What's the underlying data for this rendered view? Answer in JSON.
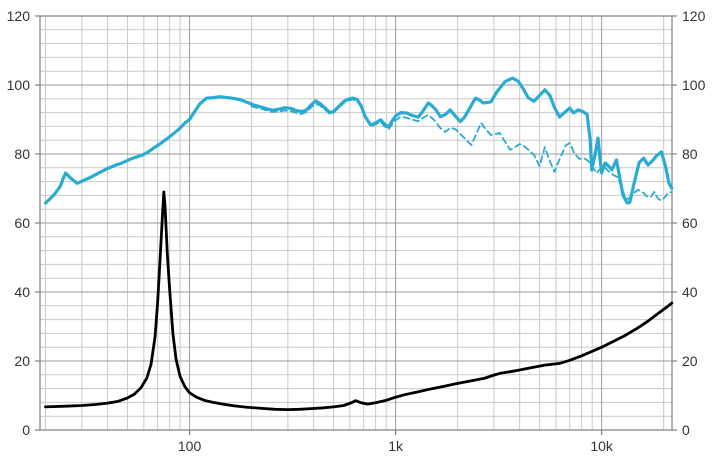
{
  "chart_data": {
    "type": "line",
    "title": "",
    "description": "Loudspeaker SPL frequency response (on-axis solid, off-axis dashed) and impedance curve",
    "grid": {
      "major_color": "#9a9a9a",
      "minor_color": "#c9c9c9",
      "border_color": "#7f7f7f",
      "text_color": "#333333",
      "background": "#ffffff",
      "grid_on": true
    },
    "x_axis": {
      "scale": "log",
      "min": 18.8,
      "max": 21950,
      "tick_labels": [
        {
          "value": 100,
          "label": "100"
        },
        {
          "value": 1000,
          "label": "1k"
        },
        {
          "value": 10000,
          "label": "10k"
        }
      ]
    },
    "y_axis_left": {
      "min": 0,
      "max": 120,
      "major_step": 20,
      "minor_step": 4,
      "tick_labels": [
        "0",
        "20",
        "40",
        "60",
        "80",
        "100",
        "120"
      ]
    },
    "y_axis_right": {
      "min": 0,
      "max": 120,
      "major_step": 20,
      "minor_step": 4,
      "tick_labels": [
        "0",
        "20",
        "40",
        "60",
        "80",
        "100",
        "120"
      ]
    },
    "legend": {
      "visible": false
    },
    "series": [
      {
        "name": "spl-on-axis",
        "style": "solid",
        "color": "#29ABD3",
        "width": 3.2,
        "points": [
          [
            20,
            65.8
          ],
          [
            21,
            67.0
          ],
          [
            22,
            68.2
          ],
          [
            23.5,
            70.5
          ],
          [
            25,
            74.5
          ],
          [
            26.5,
            73.0
          ],
          [
            28.5,
            71.5
          ],
          [
            31,
            72.5
          ],
          [
            33,
            73.2
          ],
          [
            36,
            74.4
          ],
          [
            40,
            75.8
          ],
          [
            44,
            76.8
          ],
          [
            47,
            77.4
          ],
          [
            52,
            78.6
          ],
          [
            59,
            79.7
          ],
          [
            63,
            80.6
          ],
          [
            68,
            82.0
          ],
          [
            73,
            83.2
          ],
          [
            78,
            84.5
          ],
          [
            84,
            86.0
          ],
          [
            90,
            87.5
          ],
          [
            95,
            89.0
          ],
          [
            100,
            90.0
          ],
          [
            105,
            92.0
          ],
          [
            112,
            94.5
          ],
          [
            121,
            96.2
          ],
          [
            130,
            96.3
          ],
          [
            140,
            96.6
          ],
          [
            150,
            96.4
          ],
          [
            160,
            96.2
          ],
          [
            175,
            95.8
          ],
          [
            190,
            95.0
          ],
          [
            205,
            94.2
          ],
          [
            223,
            93.6
          ],
          [
            240,
            93.0
          ],
          [
            255,
            92.7
          ],
          [
            270,
            93.0
          ],
          [
            290,
            93.4
          ],
          [
            310,
            93.2
          ],
          [
            330,
            92.6
          ],
          [
            350,
            92.3
          ],
          [
            370,
            92.8
          ],
          [
            390,
            94.3
          ],
          [
            410,
            95.4
          ],
          [
            430,
            94.6
          ],
          [
            455,
            93.3
          ],
          [
            480,
            92.0
          ],
          [
            500,
            92.3
          ],
          [
            530,
            93.8
          ],
          [
            560,
            95.2
          ],
          [
            590,
            95.9
          ],
          [
            620,
            96.2
          ],
          [
            650,
            95.8
          ],
          [
            680,
            94.0
          ],
          [
            710,
            91.0
          ],
          [
            757,
            88.4
          ],
          [
            800,
            89.0
          ],
          [
            846,
            89.9
          ],
          [
            885,
            88.6
          ],
          [
            925,
            87.8
          ],
          [
            960,
            89.5
          ],
          [
            1000,
            91.0
          ],
          [
            1060,
            92.0
          ],
          [
            1130,
            91.9
          ],
          [
            1200,
            91.2
          ],
          [
            1290,
            90.7
          ],
          [
            1360,
            92.5
          ],
          [
            1440,
            94.8
          ],
          [
            1500,
            94.0
          ],
          [
            1570,
            92.8
          ],
          [
            1650,
            90.8
          ],
          [
            1750,
            91.5
          ],
          [
            1840,
            92.8
          ],
          [
            1950,
            91.0
          ],
          [
            2060,
            89.4
          ],
          [
            2150,
            90.5
          ],
          [
            2300,
            93.5
          ],
          [
            2440,
            96.2
          ],
          [
            2560,
            95.6
          ],
          [
            2660,
            94.8
          ],
          [
            2900,
            95.1
          ],
          [
            3100,
            98.0
          ],
          [
            3400,
            101.0
          ],
          [
            3700,
            102.0
          ],
          [
            3950,
            101.0
          ],
          [
            4200,
            98.5
          ],
          [
            4400,
            96.3
          ],
          [
            4700,
            95.3
          ],
          [
            5000,
            97.0
          ],
          [
            5300,
            98.6
          ],
          [
            5600,
            97.0
          ],
          [
            5900,
            93.5
          ],
          [
            6250,
            90.7
          ],
          [
            6600,
            92.0
          ],
          [
            7000,
            93.3
          ],
          [
            7300,
            91.9
          ],
          [
            7700,
            92.8
          ],
          [
            8100,
            92.3
          ],
          [
            8500,
            91.5
          ],
          [
            8800,
            84.0
          ],
          [
            8950,
            75.4
          ],
          [
            9300,
            80.0
          ],
          [
            9600,
            84.6
          ],
          [
            9800,
            79.0
          ],
          [
            10000,
            74.5
          ],
          [
            10400,
            77.4
          ],
          [
            10800,
            76.5
          ],
          [
            11200,
            75.4
          ],
          [
            11800,
            78.3
          ],
          [
            12300,
            72.5
          ],
          [
            12700,
            68.0
          ],
          [
            13300,
            65.8
          ],
          [
            13700,
            66.0
          ],
          [
            14300,
            71.0
          ],
          [
            15200,
            77.5
          ],
          [
            16000,
            78.8
          ],
          [
            16800,
            76.8
          ],
          [
            17600,
            78.0
          ],
          [
            18500,
            79.5
          ],
          [
            19500,
            80.6
          ],
          [
            20500,
            76.0
          ],
          [
            21200,
            71.6
          ],
          [
            21900,
            70.1
          ]
        ]
      },
      {
        "name": "spl-off-axis",
        "style": "dashed",
        "color": "#29ABD3",
        "width": 1.8,
        "dash": "6 4",
        "points": [
          [
            200,
            93.8
          ],
          [
            223,
            93.1
          ],
          [
            250,
            92.2
          ],
          [
            270,
            92.3
          ],
          [
            290,
            92.6
          ],
          [
            310,
            92.4
          ],
          [
            330,
            91.9
          ],
          [
            350,
            91.6
          ],
          [
            370,
            92.2
          ],
          [
            390,
            93.6
          ],
          [
            410,
            94.6
          ],
          [
            430,
            94.0
          ],
          [
            455,
            92.8
          ],
          [
            480,
            91.6
          ],
          [
            500,
            92.0
          ],
          [
            530,
            93.4
          ],
          [
            560,
            94.8
          ],
          [
            590,
            95.5
          ],
          [
            620,
            95.8
          ],
          [
            650,
            95.3
          ],
          [
            680,
            93.6
          ],
          [
            710,
            90.6
          ],
          [
            757,
            88.0
          ],
          [
            800,
            88.6
          ],
          [
            846,
            89.3
          ],
          [
            885,
            88.0
          ],
          [
            925,
            87.2
          ],
          [
            960,
            88.6
          ],
          [
            1000,
            89.8
          ],
          [
            1060,
            90.8
          ],
          [
            1130,
            90.5
          ],
          [
            1200,
            90.0
          ],
          [
            1290,
            89.5
          ],
          [
            1360,
            90.5
          ],
          [
            1440,
            91.3
          ],
          [
            1530,
            90.0
          ],
          [
            1650,
            87.5
          ],
          [
            1740,
            86.4
          ],
          [
            1850,
            87.6
          ],
          [
            1950,
            87.2
          ],
          [
            2060,
            85.8
          ],
          [
            2200,
            84.1
          ],
          [
            2330,
            82.6
          ],
          [
            2450,
            85.5
          ],
          [
            2600,
            89.0
          ],
          [
            2750,
            87.0
          ],
          [
            2900,
            85.5
          ],
          [
            3050,
            85.8
          ],
          [
            3200,
            86.1
          ],
          [
            3400,
            83.5
          ],
          [
            3600,
            81.2
          ],
          [
            3800,
            82.0
          ],
          [
            4000,
            82.9
          ],
          [
            4200,
            82.3
          ],
          [
            4450,
            81.0
          ],
          [
            4700,
            79.7
          ],
          [
            5000,
            76.5
          ],
          [
            5300,
            82.0
          ],
          [
            5600,
            78.0
          ],
          [
            5900,
            74.8
          ],
          [
            6300,
            79.0
          ],
          [
            6700,
            82.5
          ],
          [
            7000,
            83.2
          ],
          [
            7400,
            80.0
          ],
          [
            7800,
            78.6
          ],
          [
            8200,
            78.8
          ],
          [
            8600,
            78.0
          ],
          [
            9000,
            76.5
          ],
          [
            9400,
            74.5
          ],
          [
            9800,
            75.5
          ],
          [
            10300,
            76.3
          ],
          [
            10800,
            75.0
          ],
          [
            11300,
            74.0
          ],
          [
            11900,
            73.4
          ],
          [
            12400,
            71.0
          ],
          [
            13000,
            67.5
          ],
          [
            13500,
            67.0
          ],
          [
            14200,
            68.5
          ],
          [
            15000,
            69.6
          ],
          [
            15800,
            69.0
          ],
          [
            16500,
            67.8
          ],
          [
            17300,
            67.5
          ],
          [
            18000,
            69.0
          ],
          [
            18800,
            67.0
          ],
          [
            19500,
            66.5
          ],
          [
            20300,
            67.5
          ],
          [
            21000,
            68.8
          ],
          [
            21900,
            69.0
          ]
        ]
      },
      {
        "name": "impedance",
        "style": "solid",
        "color": "#000000",
        "width": 2.8,
        "points": [
          [
            20,
            6.7
          ],
          [
            25,
            6.9
          ],
          [
            30,
            7.1
          ],
          [
            35,
            7.4
          ],
          [
            40,
            7.8
          ],
          [
            45,
            8.3
          ],
          [
            50,
            9.3
          ],
          [
            54,
            10.4
          ],
          [
            58,
            12.2
          ],
          [
            62,
            15.0
          ],
          [
            65,
            19.0
          ],
          [
            68,
            27.0
          ],
          [
            70,
            37.0
          ],
          [
            72,
            50.0
          ],
          [
            74,
            63.0
          ],
          [
            75,
            69.0
          ],
          [
            76,
            65.0
          ],
          [
            77,
            58.0
          ],
          [
            78,
            51.0
          ],
          [
            80,
            41.0
          ],
          [
            83,
            28.0
          ],
          [
            86,
            20.5
          ],
          [
            90,
            15.5
          ],
          [
            95,
            12.5
          ],
          [
            100,
            10.8
          ],
          [
            108,
            9.5
          ],
          [
            118,
            8.6
          ],
          [
            130,
            8.0
          ],
          [
            145,
            7.5
          ],
          [
            165,
            7.0
          ],
          [
            190,
            6.6
          ],
          [
            220,
            6.3
          ],
          [
            260,
            6.0
          ],
          [
            300,
            5.9
          ],
          [
            340,
            6.0
          ],
          [
            390,
            6.2
          ],
          [
            440,
            6.4
          ],
          [
            500,
            6.7
          ],
          [
            560,
            7.1
          ],
          [
            610,
            7.9
          ],
          [
            640,
            8.5
          ],
          [
            680,
            7.9
          ],
          [
            730,
            7.5
          ],
          [
            800,
            7.9
          ],
          [
            900,
            8.6
          ],
          [
            1000,
            9.5
          ],
          [
            1100,
            10.2
          ],
          [
            1250,
            10.9
          ],
          [
            1480,
            11.9
          ],
          [
            1700,
            12.6
          ],
          [
            2000,
            13.5
          ],
          [
            2300,
            14.2
          ],
          [
            2700,
            15.0
          ],
          [
            3000,
            15.9
          ],
          [
            3200,
            16.4
          ],
          [
            3600,
            16.9
          ],
          [
            4000,
            17.4
          ],
          [
            4600,
            18.1
          ],
          [
            5300,
            18.8
          ],
          [
            6250,
            19.3
          ],
          [
            7000,
            20.2
          ],
          [
            8000,
            21.5
          ],
          [
            9000,
            22.8
          ],
          [
            10000,
            24.0
          ],
          [
            11500,
            25.8
          ],
          [
            13000,
            27.4
          ],
          [
            15000,
            29.6
          ],
          [
            17000,
            31.8
          ],
          [
            19000,
            34.0
          ],
          [
            21000,
            35.9
          ],
          [
            21900,
            36.8
          ]
        ]
      }
    ]
  }
}
